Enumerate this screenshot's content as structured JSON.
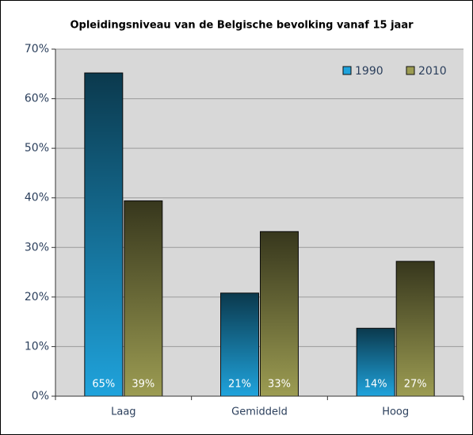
{
  "chart_data": {
    "type": "bar",
    "title": "Opleidingsniveau van de Belgische bevolking vanaf 15 jaar",
    "categories": [
      "Laag",
      "Gemiddeld",
      "Hoog"
    ],
    "series": [
      {
        "name": "1990",
        "color": "#1fa3dc",
        "values": [
          65.2,
          20.8,
          13.7
        ],
        "value_labels": [
          "65%",
          "21%",
          "14%"
        ]
      },
      {
        "name": "2010",
        "color": "#9c9c52",
        "values": [
          39.4,
          33.2,
          27.2
        ],
        "value_labels": [
          "39%",
          "33%",
          "27%"
        ]
      }
    ],
    "ylim": [
      0,
      70
    ],
    "yticks": [
      {
        "value": 0,
        "label": "0%"
      },
      {
        "value": 10,
        "label": "10%"
      },
      {
        "value": 20,
        "label": "20%"
      },
      {
        "value": 30,
        "label": "30%"
      },
      {
        "value": 40,
        "label": "40%"
      },
      {
        "value": 50,
        "label": "50%"
      },
      {
        "value": 60,
        "label": "60%"
      },
      {
        "value": 70,
        "label": "70%"
      }
    ],
    "grid": true,
    "legend": "top-right"
  }
}
